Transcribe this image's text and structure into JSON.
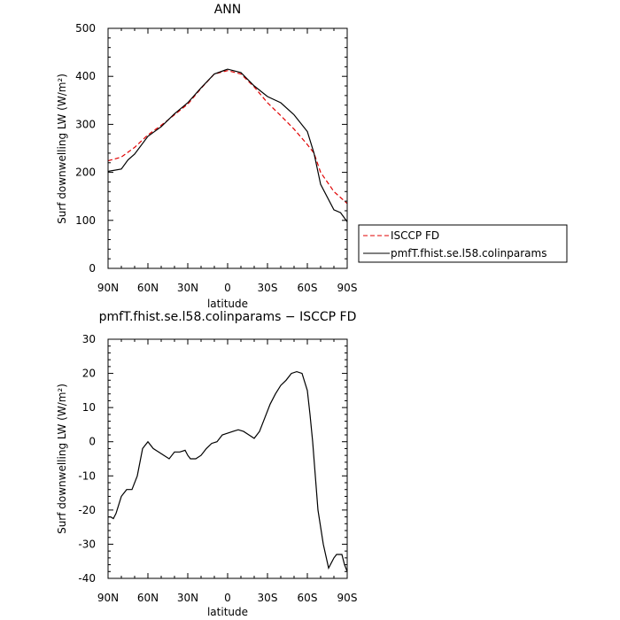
{
  "chart_data": [
    {
      "type": "line",
      "title": "ANN",
      "xlabel": "latitude",
      "ylabel": "Surf downwelling LW (W/m²)",
      "xlim": [
        90,
        -90
      ],
      "ylim": [
        0,
        500
      ],
      "yticks": [
        0,
        100,
        200,
        300,
        400,
        500
      ],
      "xticks": [
        90,
        60,
        30,
        0,
        -30,
        -60,
        -90
      ],
      "xtick_labels": [
        "90N",
        "60N",
        "30N",
        "0",
        "30S",
        "60S",
        "90S"
      ],
      "legend": {
        "placement": "right-outside"
      },
      "series": [
        {
          "name": "ISCCP FD",
          "color": "#e00000",
          "style": "dashed",
          "x": [
            90,
            80,
            70,
            60,
            50,
            40,
            30,
            20,
            10,
            0,
            -10,
            -20,
            -30,
            -40,
            -50,
            -60,
            -65,
            -70,
            -80,
            -90
          ],
          "y": [
            224,
            232,
            252,
            278,
            298,
            320,
            342,
            375,
            405,
            412,
            405,
            378,
            345,
            318,
            290,
            258,
            240,
            200,
            160,
            135
          ]
        },
        {
          "name": "pmfT.fhist.se.l58.colinparams",
          "color": "#000000",
          "style": "solid",
          "x": [
            90,
            80,
            75,
            70,
            60,
            50,
            40,
            30,
            20,
            10,
            0,
            -10,
            -20,
            -30,
            -40,
            -50,
            -60,
            -65,
            -70,
            -80,
            -85,
            -90
          ],
          "y": [
            202,
            207,
            226,
            238,
            275,
            295,
            322,
            345,
            376,
            405,
            415,
            408,
            380,
            358,
            345,
            320,
            285,
            240,
            175,
            122,
            116,
            97
          ]
        }
      ]
    },
    {
      "type": "line",
      "title": "pmfT.fhist.se.l58.colinparams − ISCCP FD",
      "xlabel": "latitude",
      "ylabel": "Surf downwelling LW (W/m²)",
      "xlim": [
        90,
        -90
      ],
      "ylim": [
        -40,
        30
      ],
      "yticks": [
        -40,
        -30,
        -20,
        -10,
        0,
        10,
        20,
        30
      ],
      "xticks": [
        90,
        60,
        30,
        0,
        -30,
        -60,
        -90
      ],
      "xtick_labels": [
        "90N",
        "60N",
        "30N",
        "0",
        "30S",
        "60S",
        "90S"
      ],
      "series": [
        {
          "color": "#000000",
          "style": "solid",
          "x": [
            90,
            88,
            86,
            84,
            80,
            76,
            72,
            68,
            64,
            60,
            56,
            52,
            48,
            44,
            40,
            36,
            32,
            30,
            28,
            24,
            20,
            16,
            12,
            8,
            4,
            0,
            -4,
            -8,
            -12,
            -16,
            -20,
            -24,
            -28,
            -32,
            -36,
            -40,
            -44,
            -48,
            -52,
            -56,
            -60,
            -62,
            -64,
            -66,
            -68,
            -72,
            -76,
            -80,
            -82,
            -86,
            -88,
            -90
          ],
          "y": [
            -22,
            -22,
            -22.5,
            -21,
            -16,
            -14,
            -14,
            -10,
            -2,
            0,
            -2,
            -3,
            -4,
            -5,
            -3,
            -3,
            -2.5,
            -4,
            -5,
            -5,
            -4,
            -2,
            -0.5,
            0,
            2,
            2.5,
            3,
            3.5,
            3,
            2,
            1,
            3,
            7,
            11,
            14,
            16.5,
            18,
            20,
            20.5,
            20,
            15,
            8,
            0,
            -10,
            -20,
            -30,
            -37,
            -34,
            -33,
            -33,
            -36,
            -38
          ]
        }
      ]
    }
  ]
}
